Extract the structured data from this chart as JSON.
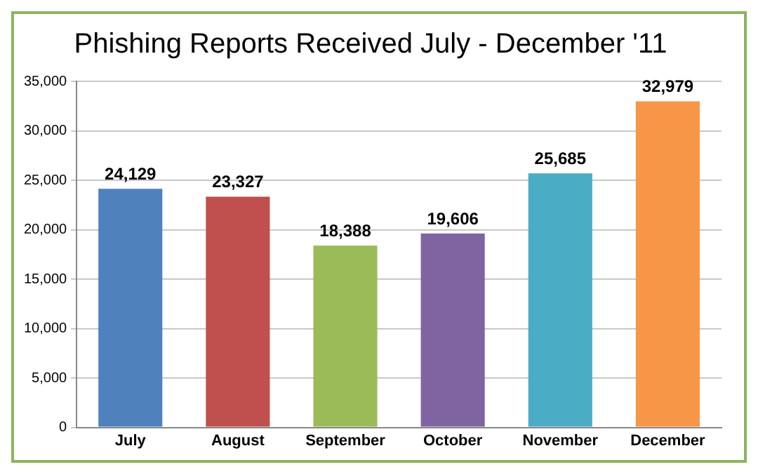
{
  "chart_data": {
    "type": "bar",
    "title": "Phishing Reports Received July - December '11",
    "categories": [
      "July",
      "August",
      "September",
      "October",
      "November",
      "December"
    ],
    "values": [
      24129,
      23327,
      18388,
      19606,
      25685,
      32979
    ],
    "value_labels": [
      "24,129",
      "23,327",
      "18,388",
      "19,606",
      "25,685",
      "32,979"
    ],
    "colors": [
      "#4f81bd",
      "#c0504d",
      "#9bbb59",
      "#8064a2",
      "#4bacc6",
      "#f79646"
    ],
    "ylim": [
      0,
      35000
    ],
    "yticks": [
      0,
      {
        "value": 5000,
        "label": "5,000"
      },
      {
        "value": 10000,
        "label": "10,000"
      },
      {
        "value": 15000,
        "label": "15,000"
      },
      {
        "value": 20000,
        "label": "20,000"
      },
      {
        "value": 25000,
        "label": "25,000"
      },
      {
        "value": 30000,
        "label": "30,000"
      },
      {
        "value": 35000,
        "label": "35,000"
      }
    ],
    "grid": "y"
  }
}
